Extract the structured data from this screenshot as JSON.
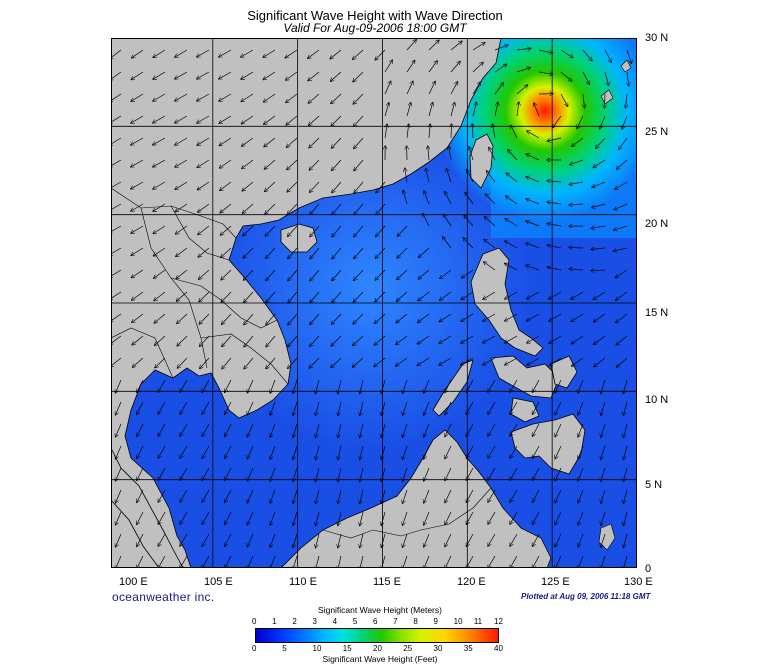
{
  "title": "Significant Wave Height with Wave Direction",
  "subtitle": "Valid For Aug-09-2006 18:00 GMT",
  "map": {
    "lon_labels": [
      "100 E",
      "105 E",
      "110 E",
      "115 E",
      "120 E",
      "125 E",
      "130 E"
    ],
    "lat_labels": [
      "30 N",
      "25 N",
      "20 N",
      "15 N",
      "10 N",
      "5 N",
      "0"
    ],
    "lon_range": [
      99,
      130
    ],
    "lat_range": [
      0,
      30
    ],
    "colors": {
      "land": "#c0c0c0",
      "sea_deep": "#0000a0",
      "sea": "#1a4fe6",
      "grid": "#000000"
    }
  },
  "branding": "oceanweather inc.",
  "plotted_at": "Plotted at Aug 09, 2006 11:18 GMT",
  "colorbar": {
    "title_top": "Significant Wave Height (Meters)",
    "title_bottom": "Significant Wave Height (Feet)",
    "meters_ticks": [
      "0",
      "1",
      "2",
      "3",
      "4",
      "5",
      "6",
      "7",
      "8",
      "9",
      "10",
      "11",
      "12"
    ],
    "feet_ticks": [
      "0",
      "5",
      "10",
      "15",
      "20",
      "25",
      "30",
      "35",
      "40"
    ]
  }
}
